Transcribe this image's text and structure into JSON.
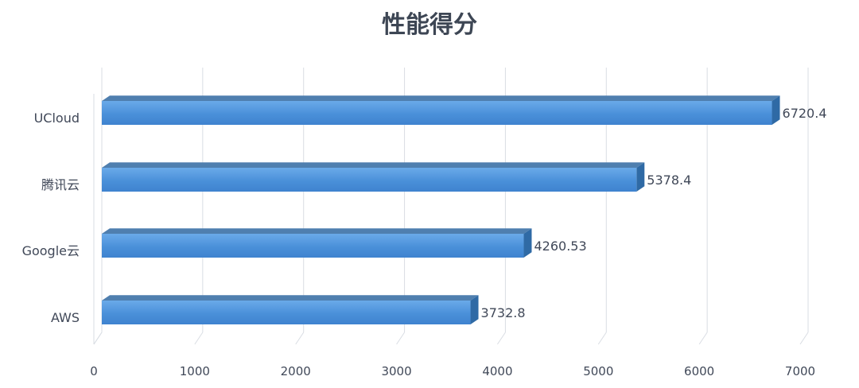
{
  "chart_data": {
    "type": "bar",
    "orientation": "horizontal",
    "title": "性能得分",
    "categories": [
      "UCloud",
      "腾讯云",
      "Google云",
      "AWS"
    ],
    "values": [
      6720.4,
      5378.4,
      4260.53,
      3732.8
    ],
    "data_labels": [
      "6720.4",
      "5378.4",
      "4260.53",
      "3732.8"
    ],
    "xticks": [
      "0",
      "1000",
      "2000",
      "3000",
      "4000",
      "5000",
      "6000",
      "7000"
    ],
    "xlim": [
      0,
      7000
    ],
    "grid": true,
    "legend": "none",
    "bar_color": "#4a90d9",
    "bar_top_color": "#4f7faf",
    "bar_side_color": "#2f6aa5"
  }
}
